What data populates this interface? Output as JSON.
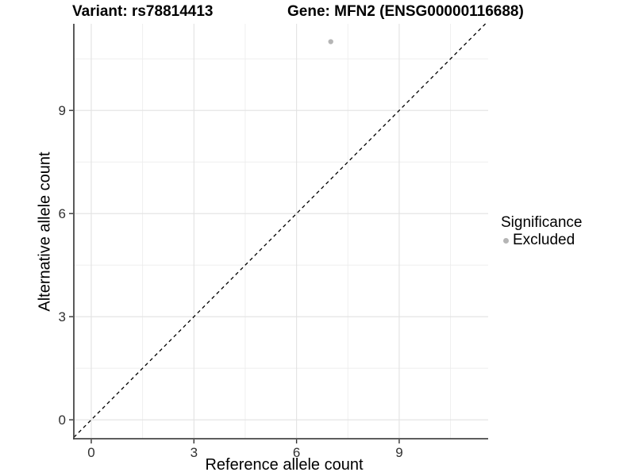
{
  "chart_data": {
    "type": "scatter",
    "title_left": "Variant: rs78814413",
    "title_right": "Gene: MFN2 (ENSG00000116688)",
    "xlabel": "Reference allele count",
    "ylabel": "Alternative allele count",
    "xlim": [
      -0.51,
      11.6
    ],
    "ylim": [
      -0.55,
      11.52
    ],
    "xticks": [
      0,
      3,
      6,
      9
    ],
    "yticks": [
      0,
      3,
      6,
      9
    ],
    "minor_xticks": [
      1.5,
      4.5,
      7.5,
      10.5
    ],
    "minor_yticks": [
      1.5,
      4.5,
      7.5,
      10.5
    ],
    "grid": "major+minor, white panel background",
    "series": [
      {
        "name": "Excluded",
        "color": "#b5b5b5",
        "points": [
          {
            "x": 7,
            "y": 11
          }
        ]
      }
    ],
    "reference_line": {
      "type": "identity y=x",
      "style": "dashed",
      "color": "#000000"
    },
    "legend": {
      "position": "right",
      "title": "Significance",
      "entries": [
        {
          "label": "Excluded",
          "color": "#b5b5b5"
        }
      ]
    },
    "colors": {
      "background": "#ffffff",
      "grid_major": "#e2e2e2",
      "grid_minor": "#ececec",
      "axis_line": "#474747",
      "tick_mark": "#333333",
      "tick_text": "#303030",
      "point": "#b5b5b5",
      "reference_line": "#000000"
    }
  }
}
